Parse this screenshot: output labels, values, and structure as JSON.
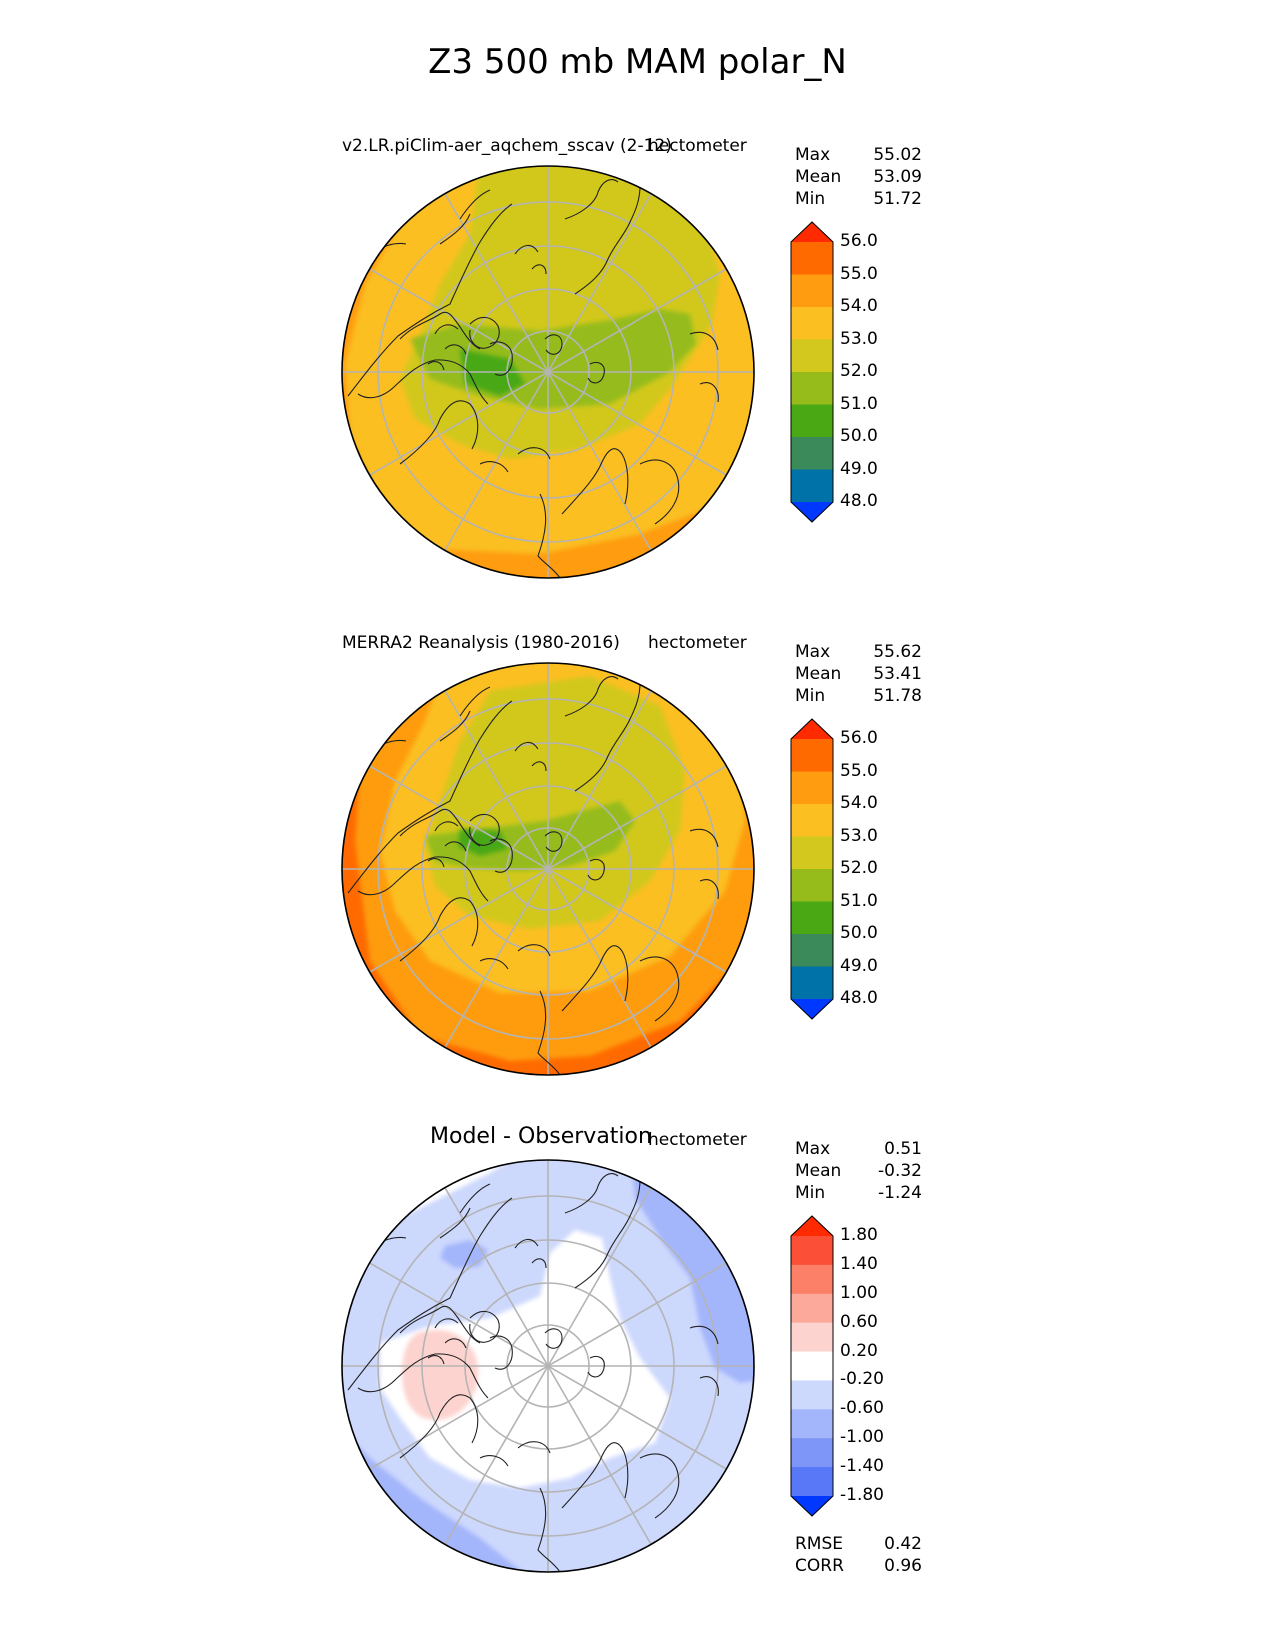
{
  "figure": {
    "title": "Z3 500 mb MAM polar_N"
  },
  "colors": {
    "abs_levels": [
      "#0038ff",
      "#0072a8",
      "#3a8a5a",
      "#4aa814",
      "#95bc1a",
      "#d2c81e",
      "#fbbf22",
      "#ff9c10",
      "#ff6a00",
      "#ff2a00"
    ],
    "diff_levels": [
      "#0038ff",
      "#2a5af0",
      "#5878f8",
      "#7d96f8",
      "#a4b6fb",
      "#cdd8fd",
      "#ffffff",
      "#fdd3cf",
      "#fca99c",
      "#fc8068",
      "#fb5037",
      "#ff2a00"
    ],
    "grid": "#b4b4b4",
    "coast": "#222222"
  },
  "chart_data": [
    {
      "type": "heatmap",
      "projection": "north-polar-stereographic",
      "title": "v2.LR.piClim-aer_aqchem_sscav (2-12)",
      "units": "hectometer",
      "stats": [
        {
          "label": "Max",
          "value": "55.02"
        },
        {
          "label": "Mean",
          "value": "53.09"
        },
        {
          "label": "Min",
          "value": "51.72"
        }
      ],
      "colorbar": {
        "levels": [
          48.0,
          49.0,
          50.0,
          51.0,
          52.0,
          53.0,
          54.0,
          55.0,
          56.0
        ],
        "tick_labels": [
          "48.0",
          "49.0",
          "50.0",
          "51.0",
          "52.0",
          "53.0",
          "54.0",
          "55.0",
          "56.0"
        ],
        "extend": "both"
      }
    },
    {
      "type": "heatmap",
      "projection": "north-polar-stereographic",
      "title": "MERRA2 Reanalysis (1980-2016)",
      "units": "hectometer",
      "stats": [
        {
          "label": "Max",
          "value": "55.62"
        },
        {
          "label": "Mean",
          "value": "53.41"
        },
        {
          "label": "Min",
          "value": "51.78"
        }
      ],
      "colorbar": {
        "levels": [
          48.0,
          49.0,
          50.0,
          51.0,
          52.0,
          53.0,
          54.0,
          55.0,
          56.0
        ],
        "tick_labels": [
          "48.0",
          "49.0",
          "50.0",
          "51.0",
          "52.0",
          "53.0",
          "54.0",
          "55.0",
          "56.0"
        ],
        "extend": "both"
      }
    },
    {
      "type": "heatmap",
      "projection": "north-polar-stereographic",
      "title": "Model - Observation",
      "units": "hectometer",
      "stats": [
        {
          "label": "Max",
          "value": "0.51"
        },
        {
          "label": "Mean",
          "value": "-0.32"
        },
        {
          "label": "Min",
          "value": "-1.24"
        }
      ],
      "colorbar": {
        "levels": [
          -1.8,
          -1.4,
          -1.0,
          -0.6,
          -0.2,
          0.2,
          0.6,
          1.0,
          1.4,
          1.8
        ],
        "tick_labels": [
          "-1.80",
          "-1.40",
          "-1.00",
          "-0.60",
          "-0.20",
          "0.20",
          "0.60",
          "1.00",
          "1.40",
          "1.80"
        ],
        "extend": "both"
      },
      "metrics": [
        {
          "label": "RMSE",
          "value": "0.42"
        },
        {
          "label": "CORR",
          "value": "0.96"
        }
      ]
    }
  ]
}
